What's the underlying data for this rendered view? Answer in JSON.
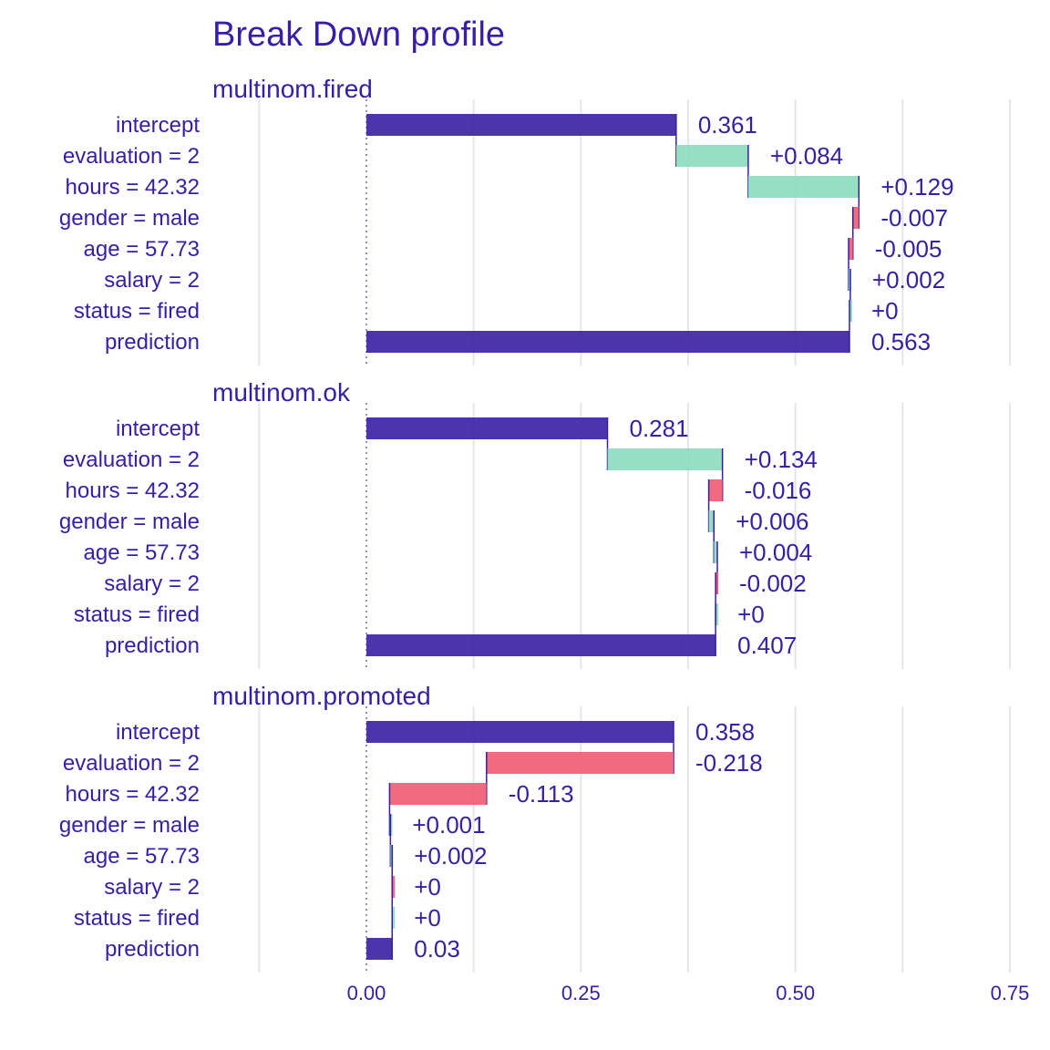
{
  "chart_data": {
    "type": "bar",
    "subtype": "break-down waterfall",
    "title": "Break Down profile",
    "x_axis": {
      "ticks": [
        0,
        0.25,
        0.5,
        0.75
      ],
      "tick_labels": [
        "0.00",
        "0.25",
        "0.50",
        "0.75"
      ],
      "xlim": [
        -0.125,
        0.75
      ],
      "grid": true
    },
    "colors": {
      "intercept_prediction": "#371ea3",
      "positive": "#8bdcbe",
      "negative": "#f05a71",
      "text": "#371ea3",
      "grid": "#e6e6e6"
    },
    "panels": [
      {
        "name": "multinom.fired",
        "rows": [
          {
            "label": "intercept",
            "type": "intercept",
            "start": 0,
            "end": 0.361,
            "value_label": "0.361"
          },
          {
            "label": "evaluation = 2",
            "type": "positive",
            "start": 0.361,
            "end": 0.445,
            "value_label": "+0.084"
          },
          {
            "label": "hours = 42.32",
            "type": "positive",
            "start": 0.445,
            "end": 0.574,
            "value_label": "+0.129"
          },
          {
            "label": "gender = male",
            "type": "negative",
            "start": 0.574,
            "end": 0.567,
            "value_label": "-0.007"
          },
          {
            "label": "age = 57.73",
            "type": "negative",
            "start": 0.567,
            "end": 0.562,
            "value_label": "-0.005"
          },
          {
            "label": "salary = 2",
            "type": "positive",
            "start": 0.562,
            "end": 0.564,
            "value_label": "+0.002"
          },
          {
            "label": "status = fired",
            "type": "positive",
            "start": 0.563,
            "end": 0.563,
            "value_label": "+0"
          },
          {
            "label": "prediction",
            "type": "prediction",
            "start": 0,
            "end": 0.563,
            "value_label": "0.563"
          }
        ]
      },
      {
        "name": "multinom.ok",
        "rows": [
          {
            "label": "intercept",
            "type": "intercept",
            "start": 0,
            "end": 0.281,
            "value_label": "0.281"
          },
          {
            "label": "evaluation = 2",
            "type": "positive",
            "start": 0.281,
            "end": 0.415,
            "value_label": "+0.134"
          },
          {
            "label": "hours = 42.32",
            "type": "negative",
            "start": 0.415,
            "end": 0.399,
            "value_label": "-0.016"
          },
          {
            "label": "gender = male",
            "type": "positive",
            "start": 0.399,
            "end": 0.405,
            "value_label": "+0.006"
          },
          {
            "label": "age = 57.73",
            "type": "positive",
            "start": 0.405,
            "end": 0.409,
            "value_label": "+0.004"
          },
          {
            "label": "salary = 2",
            "type": "negative",
            "start": 0.409,
            "end": 0.407,
            "value_label": "-0.002"
          },
          {
            "label": "status = fired",
            "type": "positive",
            "start": 0.407,
            "end": 0.407,
            "value_label": "+0"
          },
          {
            "label": "prediction",
            "type": "prediction",
            "start": 0,
            "end": 0.407,
            "value_label": "0.407"
          }
        ]
      },
      {
        "name": "multinom.promoted",
        "rows": [
          {
            "label": "intercept",
            "type": "intercept",
            "start": 0,
            "end": 0.358,
            "value_label": "0.358"
          },
          {
            "label": "evaluation = 2",
            "type": "negative",
            "start": 0.358,
            "end": 0.14,
            "value_label": "-0.218"
          },
          {
            "label": "hours = 42.32",
            "type": "negative",
            "start": 0.14,
            "end": 0.027,
            "value_label": "-0.113"
          },
          {
            "label": "gender = male",
            "type": "positive",
            "start": 0.027,
            "end": 0.028,
            "value_label": "+0.001"
          },
          {
            "label": "age = 57.73",
            "type": "positive",
            "start": 0.028,
            "end": 0.03,
            "value_label": "+0.002"
          },
          {
            "label": "salary = 2",
            "type": "negative",
            "start": 0.03,
            "end": 0.03,
            "value_label": "+0"
          },
          {
            "label": "status = fired",
            "type": "positive",
            "start": 0.03,
            "end": 0.03,
            "value_label": "+0"
          },
          {
            "label": "prediction",
            "type": "prediction",
            "start": 0,
            "end": 0.03,
            "value_label": "0.03"
          }
        ]
      }
    ]
  }
}
